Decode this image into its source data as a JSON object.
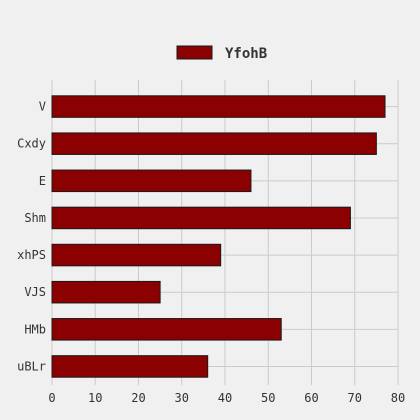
{
  "chart_data": {
    "type": "bar",
    "orientation": "horizontal",
    "categories": [
      "V",
      "Cxdy",
      "E",
      "Shm",
      "xhPS",
      "VJS",
      "HMb",
      "uBLr"
    ],
    "series": [
      {
        "name": "YfohB",
        "values": [
          77,
          75,
          46,
          69,
          39,
          25,
          53,
          36
        ]
      }
    ],
    "title": "",
    "xlabel": "",
    "ylabel": "",
    "xlim": [
      0,
      80
    ],
    "xticks": [
      0,
      10,
      20,
      30,
      40,
      50,
      60,
      70,
      80
    ],
    "grid": true,
    "legend_position": "top-center",
    "colors": {
      "background": "#f0f0f0",
      "bar_fill": "#8b0000",
      "bar_stroke": "#1a1a1a",
      "grid": "#cbcbcb",
      "text": "#333333"
    }
  }
}
